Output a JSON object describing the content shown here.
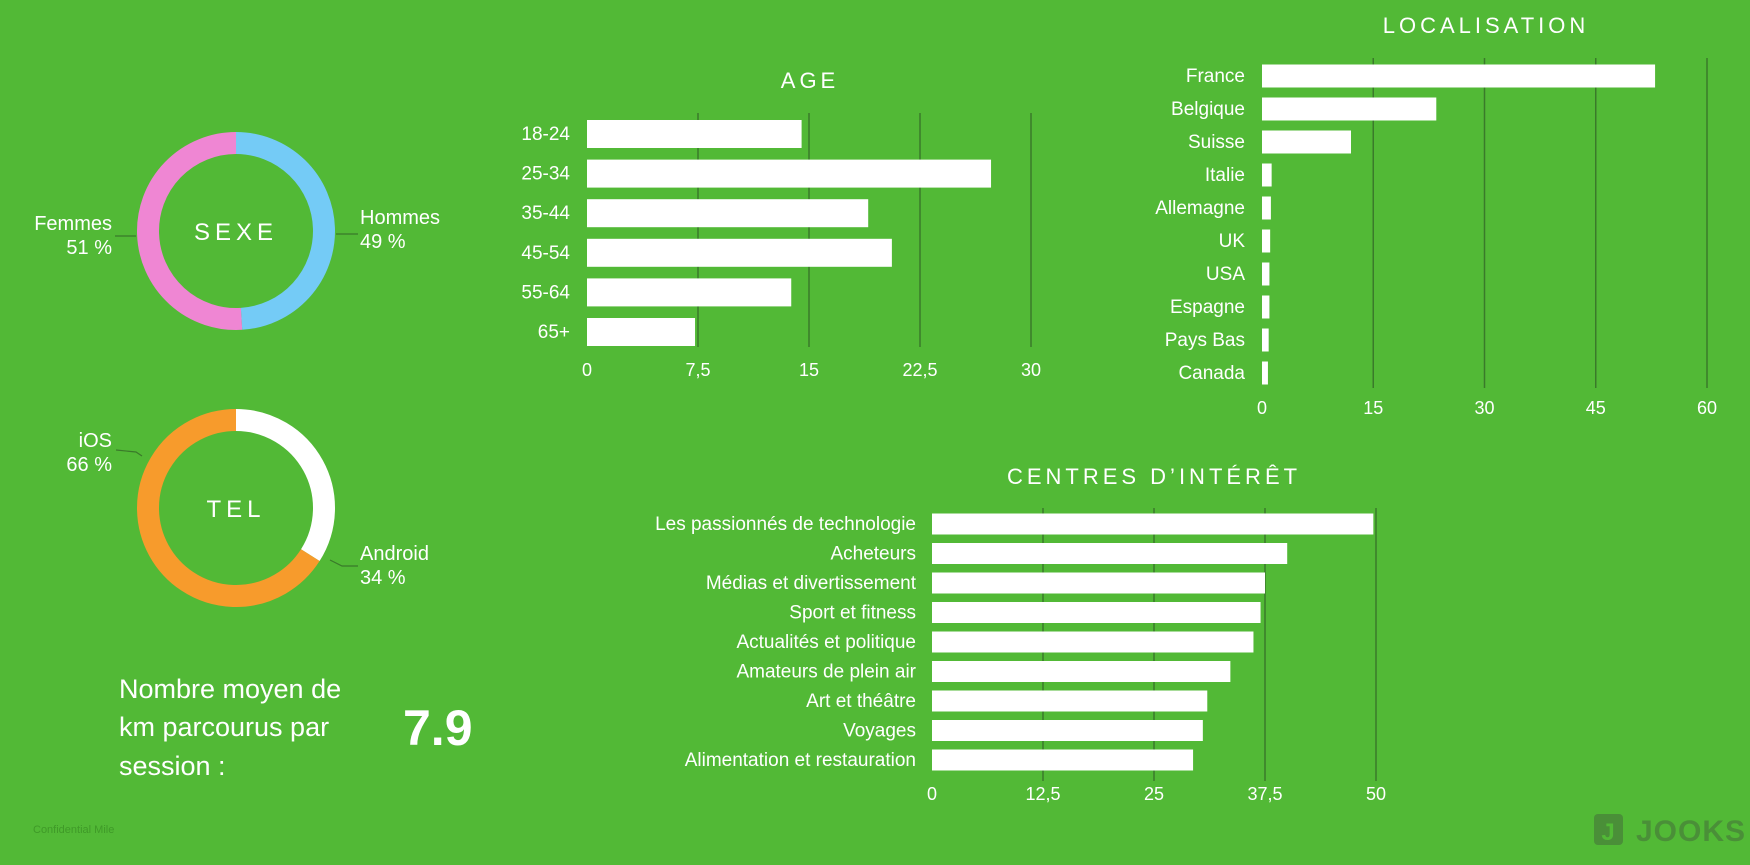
{
  "colors": {
    "background": "#52b936",
    "bar": "#ffffff",
    "grid": "#3a7a2a",
    "hommes": "#74cbf6",
    "femmes": "#ef86d3",
    "android": "#f79b2c",
    "ios": "#ffffff"
  },
  "chart_data": [
    {
      "type": "pie",
      "center_label": "SEXE",
      "slices": [
        {
          "label": "Hommes",
          "percent_text": "49 %",
          "value": 49
        },
        {
          "label": "Femmes",
          "percent_text": "51 %",
          "value": 51
        }
      ]
    },
    {
      "type": "pie",
      "center_label": "TEL",
      "slices": [
        {
          "label": "Android",
          "percent_text": "34 %",
          "value": 34
        },
        {
          "label": "iOS",
          "percent_text": "66 %",
          "value": 66
        }
      ]
    },
    {
      "type": "bar",
      "orientation": "horizontal",
      "title": "AGE",
      "categories": [
        "18-24",
        "25-34",
        "35-44",
        "45-54",
        "55-64",
        "65+"
      ],
      "values": [
        14.5,
        27.3,
        19,
        20.6,
        13.8,
        7.3
      ],
      "xlim": [
        0,
        30
      ],
      "ticks": [
        "0",
        "7,5",
        "15",
        "22,5",
        "30"
      ],
      "tick_values": [
        0,
        7.5,
        15,
        22.5,
        30
      ],
      "grid": true
    },
    {
      "type": "bar",
      "orientation": "horizontal",
      "title": "LOCALISATION",
      "categories": [
        "France",
        "Belgique",
        "Suisse",
        "Italie",
        "Allemagne",
        "UK",
        "USA",
        "Espagne",
        "Pays Bas",
        "Canada"
      ],
      "values": [
        53,
        23.5,
        12,
        1.3,
        1.2,
        1.1,
        1.0,
        1.0,
        0.9,
        0.8
      ],
      "xlim": [
        0,
        60
      ],
      "ticks": [
        "0",
        "15",
        "30",
        "45",
        "60"
      ],
      "tick_values": [
        0,
        15,
        30,
        45,
        60
      ],
      "grid": true
    },
    {
      "type": "bar",
      "orientation": "horizontal",
      "title": "CENTRES D’INTÉRÊT",
      "categories": [
        "Les passionnés de technologie",
        "Acheteurs",
        "Médias et divertissement",
        "Sport et fitness",
        "Actualités et politique",
        "Amateurs de plein air",
        "Art et théâtre",
        "Voyages",
        "Alimentation et restauration"
      ],
      "values": [
        49.7,
        40,
        37.5,
        37,
        36.2,
        33.6,
        31,
        30.5,
        29.4
      ],
      "xlim": [
        0,
        50
      ],
      "ticks": [
        "0",
        "12,5",
        "25",
        "37,5",
        "50"
      ],
      "tick_values": [
        0,
        12.5,
        25,
        37.5,
        50
      ],
      "grid": true
    }
  ],
  "stat": {
    "label_lines": [
      "Nombre moyen de",
      "km parcourus par",
      "session :"
    ],
    "value": "7.9"
  },
  "footer": {
    "confidential": "Confidential Mile",
    "logo_letter": "J",
    "logo_text": "JOOKS"
  }
}
